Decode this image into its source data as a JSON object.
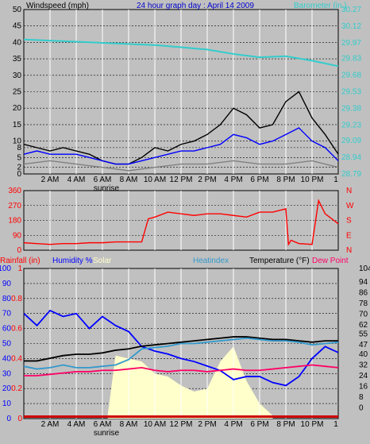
{
  "chart_data": [
    {
      "type": "line",
      "title": "24 hour graph day : April 14 2009",
      "ylabel": "Windspeed (mph)",
      "y2label": "Barometer (in.)",
      "ylim": [
        0,
        50
      ],
      "y2lim": [
        28.79,
        30.27
      ],
      "yticks": [
        "0",
        "2",
        "5",
        "8",
        "10",
        "15",
        "20",
        "25",
        "30",
        "35",
        "40",
        "45",
        "50"
      ],
      "y2ticks": [
        "28.79",
        "28.94",
        "29.09",
        "29.23",
        "29.38",
        "29.53",
        "29.68",
        "29.83",
        "29.97",
        "30.12",
        "30.27"
      ],
      "x_hours": [
        0,
        24
      ],
      "x_ticks": [
        "2 AM",
        "4 AM",
        "6 AM",
        "8 AM",
        "10 AM",
        "12 PM",
        "2 PM",
        "4 PM",
        "6 PM",
        "8 PM",
        "10 PM"
      ],
      "x_end_tick": "1",
      "sunrise_label": "sunrise",
      "grid": true,
      "series": [
        {
          "name": "Windspeed",
          "color": "#000000",
          "x": [
            0,
            1,
            2,
            3,
            4,
            5,
            6,
            7,
            8,
            9,
            10,
            11,
            12,
            13,
            14,
            15,
            16,
            17,
            18,
            19,
            20,
            21,
            22,
            23,
            24
          ],
          "y": [
            9,
            8,
            7,
            8,
            7,
            6,
            4,
            3,
            3,
            5,
            8,
            7,
            9,
            10,
            12,
            15,
            20,
            18,
            14,
            15,
            22,
            25,
            17,
            12,
            6
          ]
        },
        {
          "name": "Wind average",
          "color": "#0000ff",
          "x": [
            0,
            1,
            2,
            3,
            4,
            5,
            6,
            7,
            8,
            9,
            10,
            11,
            12,
            13,
            14,
            15,
            16,
            17,
            18,
            19,
            20,
            21,
            22,
            23,
            24
          ],
          "y": [
            6,
            7,
            6,
            6,
            6,
            5,
            4,
            3,
            3,
            4,
            5,
            6,
            7,
            7,
            8,
            9,
            12,
            11,
            9,
            10,
            12,
            14,
            10,
            8,
            4
          ]
        },
        {
          "name": "Wind gust min",
          "color": "#808080",
          "x": [
            0,
            2,
            4,
            6,
            8,
            10,
            12,
            14,
            16,
            18,
            20,
            22,
            24
          ],
          "y": [
            3,
            4,
            3,
            2,
            1,
            2,
            3,
            3,
            4,
            3,
            3,
            4,
            2
          ]
        },
        {
          "name": "Barometer",
          "color": "#33cccc",
          "axis": "right",
          "x": [
            0,
            2,
            4,
            6,
            8,
            10,
            12,
            14,
            16,
            18,
            20,
            22,
            24
          ],
          "y": [
            30.0,
            29.99,
            29.98,
            29.97,
            29.96,
            29.95,
            29.93,
            29.91,
            29.87,
            29.84,
            29.85,
            29.81,
            29.76
          ]
        }
      ]
    },
    {
      "type": "scatter",
      "ylabel": "Wind direction",
      "ylim": [
        0,
        360
      ],
      "yticks": [
        "0",
        "90",
        "180",
        "270",
        "360"
      ],
      "compass": [
        "N",
        "W",
        "S",
        "E",
        "N"
      ],
      "x_ticks": [
        "2 AM",
        "4 AM",
        "6 AM",
        "8 AM",
        "10 AM",
        "12 PM",
        "2 PM",
        "4 PM",
        "6 PM",
        "8 PM",
        "10 PM"
      ],
      "x_end_tick": "1",
      "series": [
        {
          "name": "Wind direction",
          "color": "#ff0000",
          "x": [
            0,
            1,
            2,
            3,
            4,
            5,
            6,
            7,
            8,
            9,
            9.5,
            10,
            11,
            12,
            13,
            14,
            15,
            16,
            17,
            18,
            19,
            20,
            20.2,
            20.4,
            21,
            22,
            22.5,
            23,
            24
          ],
          "y": [
            45,
            40,
            35,
            40,
            40,
            45,
            45,
            50,
            50,
            50,
            190,
            200,
            230,
            220,
            210,
            220,
            220,
            210,
            200,
            230,
            230,
            250,
            35,
            60,
            40,
            35,
            300,
            220,
            160
          ]
        }
      ]
    },
    {
      "type": "area",
      "legend": {
        "rainfall": "Rainfall (in)",
        "humidity": "Humidity %",
        "solar": "Solar",
        "heatindex": "Heatindex",
        "temperature": "Temperature (°F)",
        "dewpoint": "Dew Point"
      },
      "ylim_left": [
        0,
        100
      ],
      "yticks_left": [
        "0",
        "10",
        "20",
        "30",
        "40",
        "50",
        "60",
        "70",
        "80",
        "90",
        "100"
      ],
      "yticks_rain": [
        "0",
        "0.2",
        "0.4",
        "0.6",
        "0.8",
        "1"
      ],
      "ylim_right": [
        -8,
        104
      ],
      "yticks_right": [
        "0",
        "8",
        "16",
        "24",
        "32",
        "40",
        "47",
        "55",
        "62",
        "70",
        "78",
        "86",
        "94",
        "104"
      ],
      "x_ticks": [
        "2 AM",
        "4 AM",
        "6 AM",
        "8 AM",
        "10 AM",
        "12 PM",
        "2 PM",
        "4 PM",
        "6 PM",
        "8 PM",
        "10 PM"
      ],
      "x_end_tick": "1",
      "sunrise_label": "sunrise",
      "series": [
        {
          "name": "Humidity %",
          "color": "#0000ff",
          "x": [
            0,
            1,
            2,
            3,
            4,
            5,
            6,
            7,
            8,
            9,
            10,
            11,
            12,
            13,
            14,
            15,
            16,
            17,
            18,
            19,
            20,
            21,
            22,
            23,
            24
          ],
          "y": [
            70,
            62,
            72,
            68,
            70,
            60,
            68,
            62,
            58,
            48,
            45,
            43,
            40,
            38,
            35,
            32,
            26,
            28,
            28,
            24,
            22,
            28,
            40,
            48,
            44
          ]
        },
        {
          "name": "Temperature (°F)",
          "color": "#000000",
          "axis": "right",
          "x": [
            0,
            1,
            2,
            3,
            4,
            5,
            6,
            7,
            8,
            9,
            10,
            11,
            12,
            13,
            14,
            15,
            16,
            17,
            18,
            19,
            20,
            21,
            22,
            23,
            24
          ],
          "y": [
            35,
            35,
            37,
            39,
            40,
            40,
            41,
            43,
            44,
            46,
            47,
            48,
            49,
            50,
            51,
            52,
            53,
            53,
            52,
            51,
            51,
            50,
            49,
            50,
            50
          ]
        },
        {
          "name": "Heatindex",
          "color": "#3399cc",
          "axis": "right",
          "x": [
            0,
            1,
            2,
            3,
            4,
            5,
            6,
            7,
            8,
            9,
            10,
            11,
            12,
            13,
            14,
            15,
            16,
            17,
            18,
            19,
            20,
            21,
            22,
            23,
            24
          ],
          "y": [
            31,
            29,
            30,
            32,
            30,
            30,
            31,
            32,
            36,
            44,
            45,
            46,
            48,
            48,
            49,
            50,
            51,
            52,
            51,
            50,
            50,
            49,
            47,
            48,
            49
          ]
        },
        {
          "name": "Dew Point",
          "color": "#ff0066",
          "axis": "right",
          "x": [
            0,
            1,
            2,
            3,
            4,
            5,
            6,
            7,
            8,
            9,
            10,
            11,
            12,
            13,
            14,
            15,
            16,
            17,
            18,
            19,
            20,
            21,
            22,
            23,
            24
          ],
          "y": [
            24,
            24,
            25,
            26,
            27,
            27,
            28,
            28,
            29,
            30,
            28,
            27,
            28,
            28,
            27,
            28,
            29,
            28,
            28,
            29,
            30,
            31,
            32,
            31,
            30
          ]
        },
        {
          "name": "Solar",
          "color": "#ffffcc",
          "x": [
            6.4,
            7,
            8,
            9,
            10,
            11,
            12,
            13,
            14,
            15,
            16,
            17,
            18,
            19
          ],
          "y": [
            2,
            42,
            40,
            38,
            30,
            28,
            22,
            18,
            20,
            38,
            48,
            25,
            10,
            2
          ]
        }
      ]
    }
  ]
}
